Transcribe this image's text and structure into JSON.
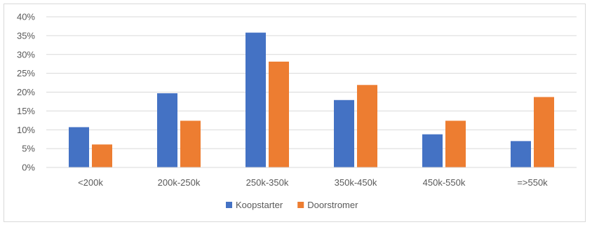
{
  "chart_data": {
    "type": "bar",
    "title": "",
    "xlabel": "",
    "ylabel": "",
    "categories": [
      "<200k",
      "200k-250k",
      "250k-350k",
      "350k-450k",
      "450k-550k",
      "=>550k"
    ],
    "series": [
      {
        "name": "Koopstarter",
        "color": "#4472c4",
        "values": [
          10.7,
          19.7,
          35.8,
          17.9,
          8.8,
          7.0
        ]
      },
      {
        "name": "Doorstromer",
        "color": "#ed7d31",
        "values": [
          6.1,
          12.4,
          28.1,
          21.9,
          12.4,
          18.7
        ]
      }
    ],
    "ylim": [
      0,
      40
    ],
    "yticks": [
      "0%",
      "5%",
      "10%",
      "15%",
      "20%",
      "25%",
      "30%",
      "35%",
      "40%"
    ],
    "grid": true,
    "legend_position": "bottom"
  }
}
